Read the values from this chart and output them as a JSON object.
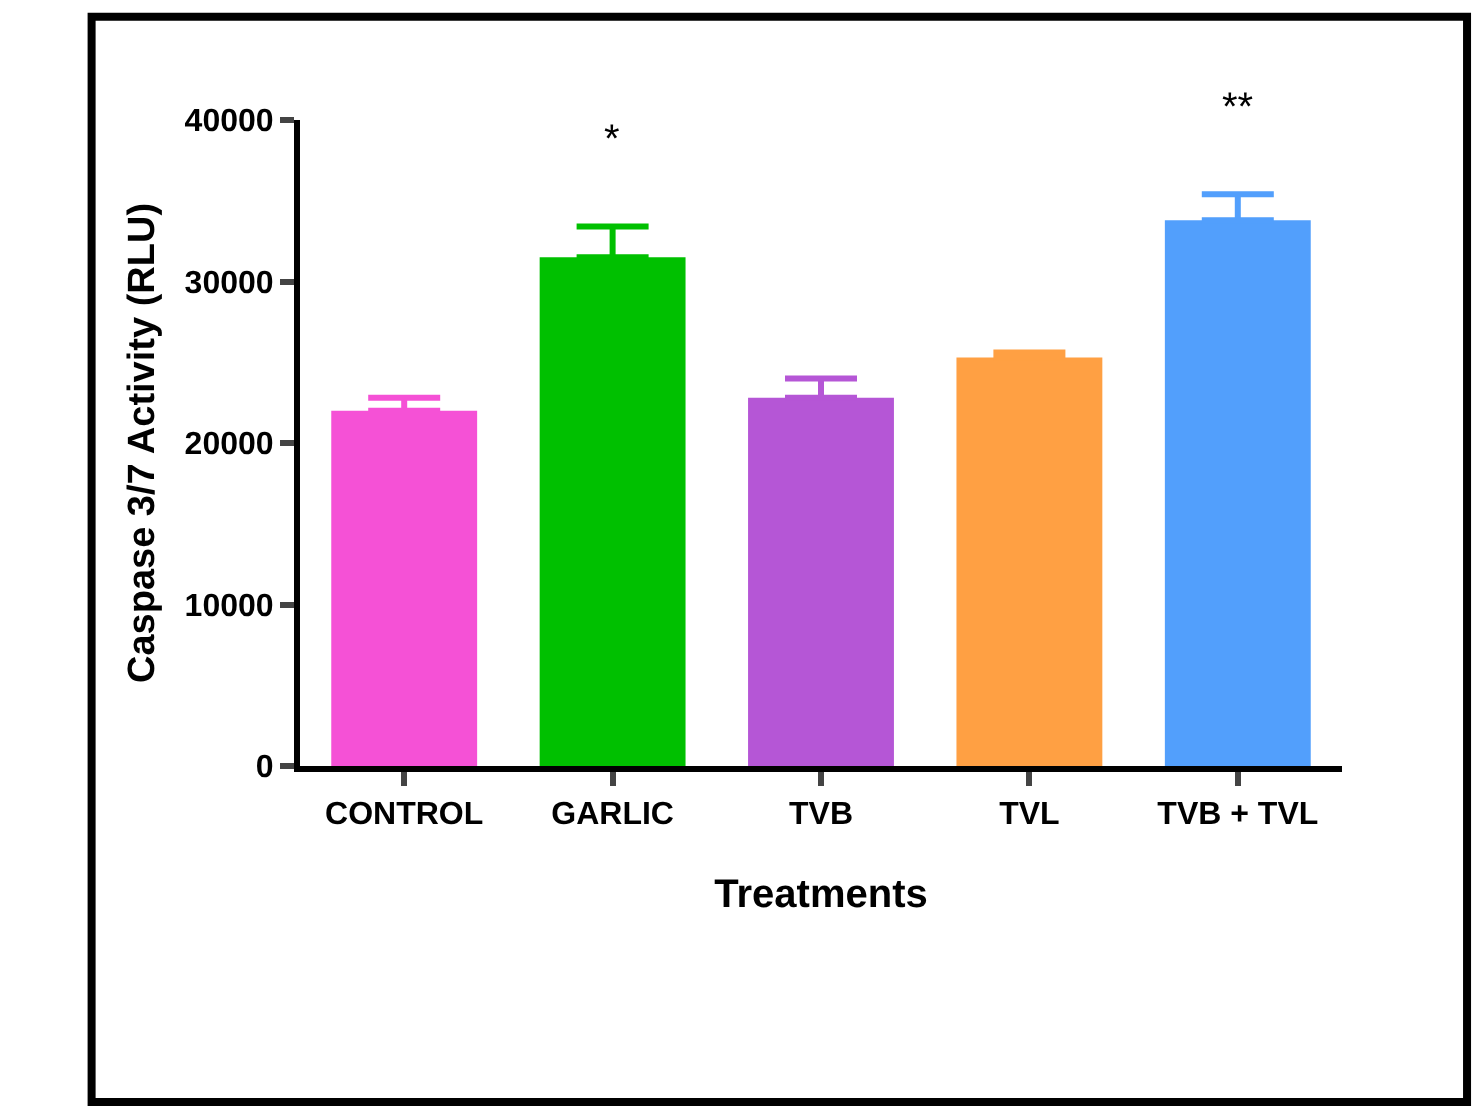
{
  "chart_data": {
    "type": "bar",
    "categories": [
      "CONTROL",
      "GARLIC",
      "TVB",
      "TVL",
      "TVB + TVL"
    ],
    "values": [
      22000,
      31500,
      22800,
      25300,
      33800
    ],
    "colors": [
      "#f551d6",
      "#00c000",
      "#b556d6",
      "#ffa043",
      "#529ffc"
    ],
    "errors": [
      [
        22000,
        22800
      ],
      [
        31500,
        33400
      ],
      [
        22800,
        24000
      ],
      [
        25300,
        25600
      ],
      [
        33800,
        35400
      ]
    ],
    "xlabel": "Treatments",
    "ylabel": "Caspase 3/7 Activity (RLU)",
    "ylim": [
      0,
      40000
    ],
    "yticks": [
      0,
      10000,
      20000,
      30000,
      40000
    ],
    "value_labels": [
      null,
      "*",
      null,
      null,
      "**"
    ]
  }
}
